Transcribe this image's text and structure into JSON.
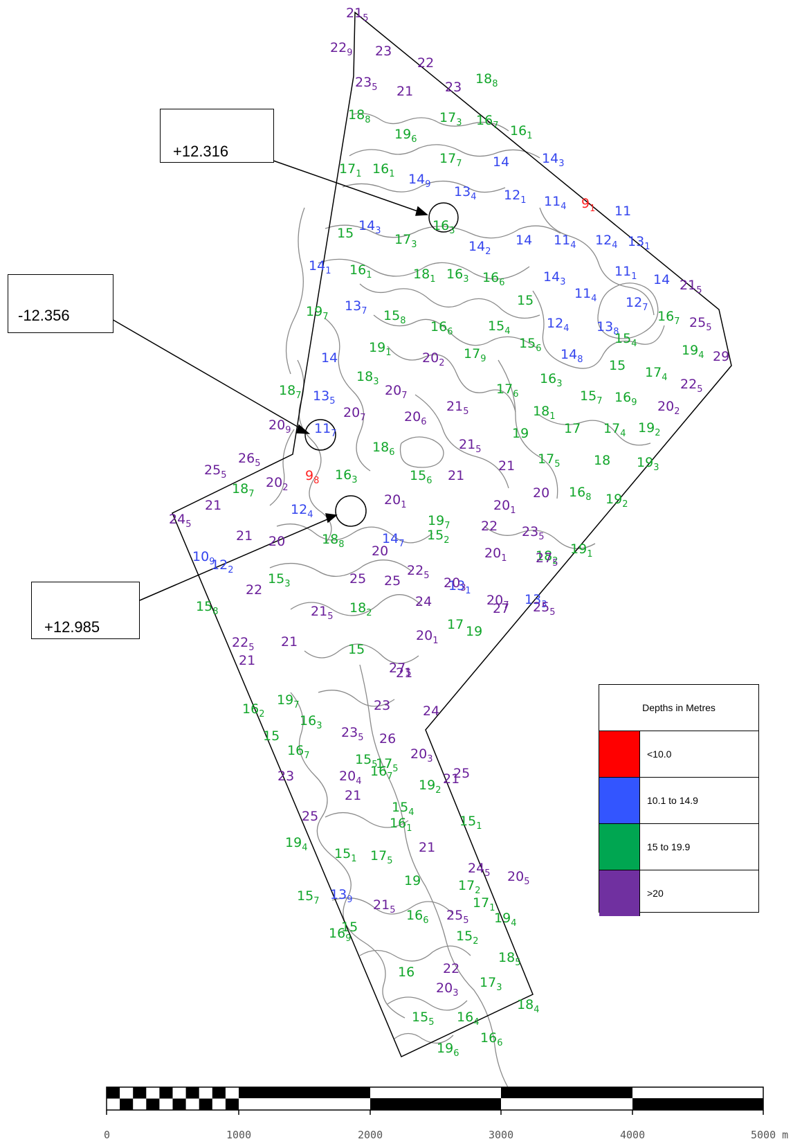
{
  "legend": {
    "title": "Depths in Metres",
    "items": [
      {
        "label": "<10.0",
        "color": "#ff0000"
      },
      {
        "label": "10.1 to 14.9",
        "color": "#3355ff"
      },
      {
        "label": "15 to 19.9",
        "color": "#00a651"
      },
      {
        "label": ">20",
        "color": "#7030a0"
      }
    ]
  },
  "colors": {
    "red": "#ff2222",
    "blue": "#3344ee",
    "green": "#11a62a",
    "purple": "#6a1f9a",
    "contour": "#8a8a8a"
  },
  "callouts": [
    {
      "label": "+12.316"
    },
    {
      "label": "-12.356"
    },
    {
      "label": "+12.985"
    }
  ],
  "scale_bar": {
    "labels": [
      "0",
      "1000",
      "2000",
      "3000",
      "4000",
      "5000 m"
    ]
  },
  "soundings": [
    [
      "21",
      "5",
      "p"
    ],
    [
      "22",
      "9",
      "p"
    ],
    [
      "23",
      "",
      "p"
    ],
    [
      "22",
      "",
      "p"
    ],
    [
      "23",
      "5",
      "p"
    ],
    [
      "21",
      "",
      "p"
    ],
    [
      "23",
      "",
      "p"
    ],
    [
      "18",
      "8",
      "g"
    ],
    [
      "18",
      "8",
      "g"
    ],
    [
      "17",
      "3",
      "g"
    ],
    [
      "16",
      "7",
      "g"
    ],
    [
      "16",
      "1",
      "g"
    ],
    [
      "19",
      "6",
      "g"
    ],
    [
      "17",
      "7",
      "g"
    ],
    [
      "14",
      "",
      "b"
    ],
    [
      "14",
      "3",
      "b"
    ],
    [
      "17",
      "1",
      "g"
    ],
    [
      "16",
      "1",
      "g"
    ],
    [
      "14",
      "9",
      "b"
    ],
    [
      "13",
      "4",
      "b"
    ],
    [
      "12",
      "1",
      "b"
    ],
    [
      "11",
      "4",
      "b"
    ],
    [
      "9",
      "1",
      "r"
    ],
    [
      "11",
      "",
      "b"
    ],
    [
      "14",
      "3",
      "b"
    ],
    [
      "16",
      "3",
      "g"
    ],
    [
      "15",
      "",
      "g"
    ],
    [
      "17",
      "3",
      "g"
    ],
    [
      "14",
      "2",
      "b"
    ],
    [
      "14",
      "",
      "b"
    ],
    [
      "11",
      "4",
      "b"
    ],
    [
      "12",
      "4",
      "b"
    ],
    [
      "13",
      "1",
      "b"
    ],
    [
      "14",
      "1",
      "b"
    ],
    [
      "16",
      "1",
      "g"
    ],
    [
      "18",
      "1",
      "g"
    ],
    [
      "16",
      "3",
      "g"
    ],
    [
      "16",
      "6",
      "g"
    ],
    [
      "14",
      "3",
      "b"
    ],
    [
      "11",
      "1",
      "b"
    ],
    [
      "14",
      "",
      "b"
    ],
    [
      "21",
      "5",
      "p"
    ],
    [
      "15",
      "",
      "g"
    ],
    [
      "11",
      "4",
      "b"
    ],
    [
      "12",
      "7",
      "b"
    ],
    [
      "19",
      "7",
      "g"
    ],
    [
      "13",
      "7",
      "b"
    ],
    [
      "15",
      "8",
      "g"
    ],
    [
      "16",
      "6",
      "g"
    ],
    [
      "15",
      "4",
      "g"
    ],
    [
      "12",
      "4",
      "b"
    ],
    [
      "13",
      "8",
      "b"
    ],
    [
      "16",
      "7",
      "g"
    ],
    [
      "25",
      "5",
      "p"
    ],
    [
      "19",
      "1",
      "g"
    ],
    [
      "15",
      "6",
      "g"
    ],
    [
      "15",
      "4",
      "g"
    ],
    [
      "19",
      "4",
      "g"
    ],
    [
      "14",
      "",
      "b"
    ],
    [
      "20",
      "2",
      "p"
    ],
    [
      "17",
      "9",
      "g"
    ],
    [
      "14",
      "8",
      "b"
    ],
    [
      "15",
      "",
      "g"
    ],
    [
      "29",
      "",
      "p"
    ],
    [
      "18",
      "3",
      "g"
    ],
    [
      "16",
      "3",
      "g"
    ],
    [
      "17",
      "4",
      "g"
    ],
    [
      "22",
      "5",
      "p"
    ],
    [
      "18",
      "7",
      "g"
    ],
    [
      "13",
      "5",
      "b"
    ],
    [
      "20",
      "7",
      "p"
    ],
    [
      "17",
      "6",
      "g"
    ],
    [
      "15",
      "7",
      "g"
    ],
    [
      "16",
      "9",
      "g"
    ],
    [
      "20",
      "9",
      "p"
    ],
    [
      "11",
      "7",
      "b"
    ],
    [
      "20",
      "7",
      "p"
    ],
    [
      "20",
      "6",
      "p"
    ],
    [
      "21",
      "5",
      "p"
    ],
    [
      "18",
      "1",
      "g"
    ],
    [
      "20",
      "2",
      "p"
    ],
    [
      "19",
      "",
      "g"
    ],
    [
      "17",
      "",
      "g"
    ],
    [
      "17",
      "4",
      "g"
    ],
    [
      "19",
      "2",
      "g"
    ],
    [
      "26",
      "5",
      "p"
    ],
    [
      "18",
      "6",
      "g"
    ],
    [
      "21",
      "5",
      "p"
    ],
    [
      "25",
      "5",
      "p"
    ],
    [
      "20",
      "2",
      "p"
    ],
    [
      "9",
      "8",
      "r"
    ],
    [
      "16",
      "3",
      "g"
    ],
    [
      "15",
      "6",
      "g"
    ],
    [
      "21",
      "",
      "p"
    ],
    [
      "21",
      "",
      "p"
    ],
    [
      "17",
      "5",
      "g"
    ],
    [
      "18",
      "",
      "g"
    ],
    [
      "19",
      "3",
      "g"
    ],
    [
      "21",
      "",
      "p"
    ],
    [
      "18",
      "7",
      "g"
    ],
    [
      "20",
      "1",
      "p"
    ],
    [
      "20",
      "1",
      "p"
    ],
    [
      "20",
      "",
      "p"
    ],
    [
      "16",
      "8",
      "g"
    ],
    [
      "19",
      "2",
      "g"
    ],
    [
      "24",
      "5",
      "p"
    ],
    [
      "12",
      "4",
      "b"
    ],
    [
      "19",
      "7",
      "g"
    ],
    [
      "22",
      "",
      "p"
    ],
    [
      "23",
      "5",
      "p"
    ],
    [
      "21",
      "",
      "p"
    ],
    [
      "20",
      "",
      "p"
    ],
    [
      "18",
      "8",
      "g"
    ],
    [
      "14",
      "7",
      "b"
    ],
    [
      "15",
      "2",
      "g"
    ],
    [
      "18",
      "2",
      "g"
    ],
    [
      "20",
      "",
      "p"
    ],
    [
      "20",
      "1",
      "p"
    ],
    [
      "27",
      "5",
      "p"
    ],
    [
      "19",
      "1",
      "g"
    ],
    [
      "10",
      "9",
      "b"
    ],
    [
      "12",
      "2",
      "b"
    ],
    [
      "15",
      "3",
      "g"
    ],
    [
      "25",
      "",
      "p"
    ],
    [
      "25",
      "",
      "p"
    ],
    [
      "22",
      "5",
      "p"
    ],
    [
      "13",
      "1",
      "b"
    ],
    [
      "22",
      "",
      "p"
    ],
    [
      "20",
      "3",
      "p"
    ],
    [
      "20",
      "7",
      "p"
    ],
    [
      "13",
      "3",
      "b"
    ],
    [
      "15",
      "8",
      "g"
    ],
    [
      "21",
      "5",
      "p"
    ],
    [
      "18",
      "2",
      "g"
    ],
    [
      "24",
      "",
      "p"
    ],
    [
      "27",
      "",
      "p"
    ],
    [
      "25",
      "5",
      "p"
    ],
    [
      "22",
      "5",
      "p"
    ],
    [
      "21",
      "",
      "p"
    ],
    [
      "17",
      "",
      "g"
    ],
    [
      "19",
      "",
      "g"
    ],
    [
      "21",
      "",
      "p"
    ],
    [
      "15",
      "",
      "g"
    ],
    [
      "20",
      "1",
      "p"
    ],
    [
      "21",
      "",
      "p"
    ],
    [
      "27",
      "5",
      "p"
    ],
    [
      "16",
      "2",
      "g"
    ],
    [
      "19",
      "7",
      "g"
    ],
    [
      "23",
      "",
      "p"
    ],
    [
      "24",
      "",
      "p"
    ],
    [
      "16",
      "3",
      "g"
    ],
    [
      "23",
      "5",
      "p"
    ],
    [
      "26",
      "",
      "p"
    ],
    [
      "15",
      "",
      "g"
    ],
    [
      "16",
      "7",
      "g"
    ],
    [
      "20",
      "3",
      "p"
    ],
    [
      "20",
      "4",
      "p"
    ],
    [
      "16",
      "7",
      "g"
    ],
    [
      "23",
      "",
      "p"
    ],
    [
      "15",
      "5",
      "g"
    ],
    [
      "17",
      "5",
      "g"
    ],
    [
      "21",
      "",
      "p"
    ],
    [
      "25",
      "",
      "p"
    ],
    [
      "19",
      "2",
      "g"
    ],
    [
      "15",
      "4",
      "g"
    ],
    [
      "21",
      "",
      "p"
    ],
    [
      "19",
      "4",
      "g"
    ],
    [
      "16",
      "1",
      "g"
    ],
    [
      "25",
      "",
      "p"
    ],
    [
      "15",
      "1",
      "g"
    ],
    [
      "15",
      "1",
      "g"
    ],
    [
      "17",
      "5",
      "g"
    ],
    [
      "21",
      "",
      "p"
    ],
    [
      "24",
      "5",
      "p"
    ],
    [
      "20",
      "5",
      "p"
    ],
    [
      "15",
      "7",
      "g"
    ],
    [
      "19",
      "",
      "g"
    ],
    [
      "17",
      "2",
      "g"
    ],
    [
      "13",
      "9",
      "b"
    ],
    [
      "21",
      "5",
      "p"
    ],
    [
      "17",
      "1",
      "g"
    ],
    [
      "15",
      "",
      "g"
    ],
    [
      "16",
      "6",
      "g"
    ],
    [
      "25",
      "5",
      "p"
    ],
    [
      "19",
      "4",
      "g"
    ],
    [
      "15",
      "2",
      "g"
    ],
    [
      "16",
      "",
      "g"
    ],
    [
      "22",
      "",
      "p"
    ],
    [
      "18",
      "5",
      "g"
    ],
    [
      "16",
      "9",
      "g"
    ],
    [
      "17",
      "3",
      "g"
    ],
    [
      "20",
      "3",
      "p"
    ],
    [
      "18",
      "4",
      "g"
    ],
    [
      "15",
      "5",
      "g"
    ],
    [
      "16",
      "4",
      "g"
    ],
    [
      "16",
      "6",
      "g"
    ],
    [
      "19",
      "6",
      "g"
    ]
  ]
}
